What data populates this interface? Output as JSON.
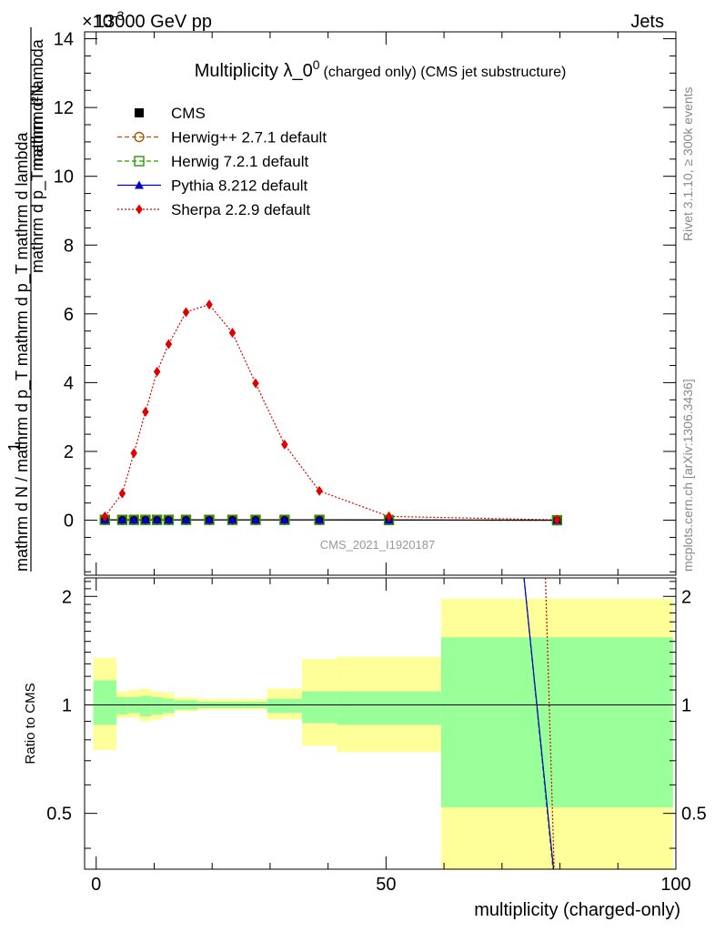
{
  "header": {
    "beam": "13000 GeV pp",
    "category": "Jets",
    "exponent_label": "×10",
    "exponent_power": "-3"
  },
  "side_labels": {
    "rivet": "Rivet 3.1.10, ≥ 300k events",
    "mcplots": "mcplots.cern.ch [arXiv:1306.3436]"
  },
  "chart_data": [
    {
      "type": "line",
      "title": "Multiplicity λ_0",
      "title_sup": "0",
      "title_suffix": "(charged only) (CMS jet substructure)",
      "analysis_label": "CMS_2021_I1920187",
      "ylabel_numerator": "1",
      "ylabel_denominator": "mathrm d N / mathrm d p",
      "ylabel_full": "mathrm d N / mathrm d p_T mathrm d p_T mathrm d lambda",
      "ylabel_right": "mathrm d²N",
      "ylabel_right_denom": "mathrm d p_T mathrm d lambda",
      "xlim": [
        -2,
        100
      ],
      "ylim": [
        -1.6,
        14.2
      ],
      "yticks": [
        0,
        2,
        4,
        6,
        8,
        10,
        12,
        14
      ],
      "ytick_labels": [
        "0",
        "2",
        "4",
        "6",
        "8",
        "10",
        "12",
        "14"
      ],
      "legend_position": "top-left",
      "series": [
        {
          "name": "CMS",
          "color": "#000000",
          "marker": "square",
          "x": [
            1.5,
            4.5,
            6.5,
            8.5,
            10.5,
            12.5,
            15.5,
            19.5,
            23.5,
            27.5,
            32.5,
            38.5,
            50.5,
            79.5
          ],
          "y": [
            0.01,
            0.01,
            0.01,
            0.01,
            0.01,
            0.01,
            0.01,
            0.01,
            0.01,
            0.01,
            0.01,
            0.01,
            0.005,
            0.0
          ]
        },
        {
          "name": "Herwig++ 2.7.1 default",
          "color": "#a05a00",
          "marker": "circle-open",
          "x": [
            1.5,
            4.5,
            6.5,
            8.5,
            10.5,
            12.5,
            15.5,
            19.5,
            23.5,
            27.5,
            32.5,
            38.5,
            50.5,
            79.5
          ],
          "y": [
            0.01,
            0.01,
            0.01,
            0.01,
            0.01,
            0.01,
            0.01,
            0.01,
            0.01,
            0.01,
            0.01,
            0.01,
            0.005,
            0.0
          ]
        },
        {
          "name": "Herwig 7.2.1 default",
          "color": "#2a9a00",
          "marker": "square-open",
          "x": [
            1.5,
            4.5,
            6.5,
            8.5,
            10.5,
            12.5,
            15.5,
            19.5,
            23.5,
            27.5,
            32.5,
            38.5,
            50.5,
            79.5
          ],
          "y": [
            0.01,
            0.01,
            0.01,
            0.01,
            0.01,
            0.01,
            0.01,
            0.01,
            0.01,
            0.01,
            0.01,
            0.01,
            0.005,
            0.0
          ]
        },
        {
          "name": "Pythia 8.212 default",
          "color": "#0000cc",
          "marker": "triangle",
          "x": [
            1.5,
            4.5,
            6.5,
            8.5,
            10.5,
            12.5,
            15.5,
            19.5,
            23.5,
            27.5,
            32.5,
            38.5,
            50.5,
            79.5
          ],
          "y": [
            0.01,
            0.01,
            0.01,
            0.01,
            0.01,
            0.01,
            0.01,
            0.01,
            0.01,
            0.01,
            0.01,
            0.01,
            0.005,
            0.0
          ]
        },
        {
          "name": "Sherpa 2.2.9 default",
          "color": "#e00000",
          "marker": "diamond",
          "x": [
            1.5,
            4.5,
            6.5,
            8.5,
            10.5,
            12.5,
            15.5,
            19.5,
            23.5,
            27.5,
            32.5,
            38.5,
            50.5,
            79.5
          ],
          "y": [
            0.11,
            0.78,
            1.95,
            3.15,
            4.32,
            5.12,
            6.05,
            6.27,
            5.45,
            3.98,
            2.2,
            0.85,
            0.11,
            0.01
          ]
        }
      ]
    },
    {
      "type": "area",
      "ylabel": "Ratio to CMS",
      "xlabel": "multiplicity (charged-only)",
      "xlim": [
        -2,
        100
      ],
      "ylim": [
        0.35,
        2.25
      ],
      "xticks": [
        0,
        50,
        100
      ],
      "xtick_labels": [
        "0",
        "50",
        "100"
      ],
      "yticks": [
        0.5,
        1,
        2
      ],
      "ytick_labels": [
        "0.5",
        "1",
        "2"
      ],
      "reference": 1,
      "bands": {
        "bins": [
          [
            -0.5,
            3.5
          ],
          [
            3.5,
            5.5
          ],
          [
            5.5,
            7.5
          ],
          [
            7.5,
            9.5
          ],
          [
            9.5,
            11.5
          ],
          [
            11.5,
            13.5
          ],
          [
            13.5,
            17.5
          ],
          [
            17.5,
            21.5
          ],
          [
            21.5,
            25.5
          ],
          [
            25.5,
            29.5
          ],
          [
            29.5,
            35.5
          ],
          [
            35.5,
            41.5
          ],
          [
            41.5,
            59.5
          ],
          [
            59.5,
            99.5
          ]
        ],
        "inner_low": [
          0.88,
          0.94,
          0.95,
          0.93,
          0.94,
          0.95,
          0.97,
          0.98,
          0.98,
          0.98,
          0.95,
          0.89,
          0.88,
          0.52
        ],
        "inner_high": [
          1.17,
          1.05,
          1.05,
          1.06,
          1.05,
          1.04,
          1.03,
          1.02,
          1.02,
          1.02,
          1.04,
          1.09,
          1.09,
          1.54
        ],
        "outer_low": [
          0.75,
          0.92,
          0.92,
          0.9,
          0.91,
          0.93,
          0.96,
          0.97,
          0.97,
          0.97,
          0.91,
          0.77,
          0.74,
          0.35
        ],
        "outer_high": [
          1.35,
          1.09,
          1.1,
          1.11,
          1.09,
          1.08,
          1.05,
          1.04,
          1.04,
          1.04,
          1.11,
          1.34,
          1.36,
          1.97
        ],
        "inner_color": "#99ff99",
        "outer_color": "#ffff99"
      },
      "series": [
        {
          "name": "Herwig++ 2.7.1 default",
          "color": "#a05a00",
          "dash": "5,3",
          "x": [
            73.8,
            78.8
          ],
          "y": [
            2.25,
            0.35
          ]
        },
        {
          "name": "Herwig 7.2.1 default",
          "color": "#2a9a00",
          "dash": "5,3",
          "x": [
            73.8,
            78.8
          ],
          "y": [
            2.25,
            0.35
          ]
        },
        {
          "name": "Pythia 8.212 default",
          "color": "#0000cc",
          "dash": "",
          "x": [
            73.8,
            78.9
          ],
          "y": [
            2.25,
            0.35
          ]
        },
        {
          "name": "Sherpa 2.2.9 default",
          "color": "#e00000",
          "dash": "2,2",
          "x": [
            77.5,
            79.0
          ],
          "y": [
            2.25,
            0.35
          ]
        }
      ]
    }
  ]
}
